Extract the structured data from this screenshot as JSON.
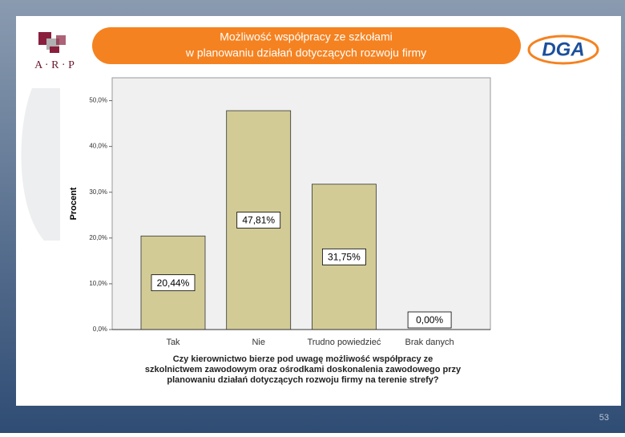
{
  "header": {
    "left_logo": "A · R · P",
    "right_logo": "DGA",
    "page_number": "53"
  },
  "chart_data": {
    "type": "bar",
    "title": [
      "Możliwość współpracy ze szkołami",
      "w planowaniu działań dotyczących rozwoju firmy"
    ],
    "y_label": "Procent",
    "x_label": [
      "Czy kierownictwo bierze pod uwagę możliwość współpracy ze",
      "szkolnictwem zawodowym oraz ośrodkami doskonalenia zawodowego przy",
      "planowaniu działań dotyczących rozwoju firmy na terenie strefy?"
    ],
    "categories": [
      "Tak",
      "Nie",
      "Trudno powiedzieć",
      "Brak danych"
    ],
    "values": [
      20.44,
      47.81,
      31.75,
      0
    ],
    "value_labels": [
      "20,44%",
      "47,81%",
      "31,75%",
      "0,00%"
    ],
    "color": "#d3cb96",
    "ylim": [
      0,
      55
    ],
    "yticks": [
      {
        "value": 0,
        "label": "0,0%"
      },
      {
        "value": 10,
        "label": "10,0%"
      },
      {
        "value": 20,
        "label": "20,0%"
      },
      {
        "value": 30,
        "label": "30,0%"
      },
      {
        "value": 40,
        "label": "40,0%"
      },
      {
        "value": 50,
        "label": "50,0%"
      }
    ]
  }
}
